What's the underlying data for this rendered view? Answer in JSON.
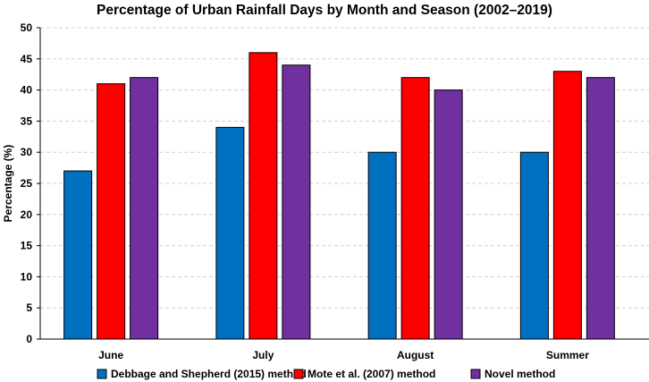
{
  "chart_data": {
    "type": "bar",
    "title": "Percentage of Urban Rainfall Days by Month and Season (2002–2019)",
    "xlabel": "",
    "ylabel": "Percentage (%)",
    "ylim": [
      0,
      50
    ],
    "yticks": [
      0,
      5,
      10,
      15,
      20,
      25,
      30,
      35,
      40,
      45,
      50
    ],
    "grid": true,
    "legend_position": "bottom",
    "categories": [
      "June",
      "July",
      "August",
      "Summer"
    ],
    "series": [
      {
        "name": "Debbage and Shepherd (2015) method",
        "color": "#0070C0",
        "values": [
          27,
          34,
          30,
          30
        ]
      },
      {
        "name": "Mote et al. (2007) method",
        "color": "#FF0000",
        "values": [
          41,
          46,
          42,
          43
        ]
      },
      {
        "name": "Novel method",
        "color": "#7030A0",
        "values": [
          42,
          44,
          40,
          42
        ]
      }
    ]
  }
}
